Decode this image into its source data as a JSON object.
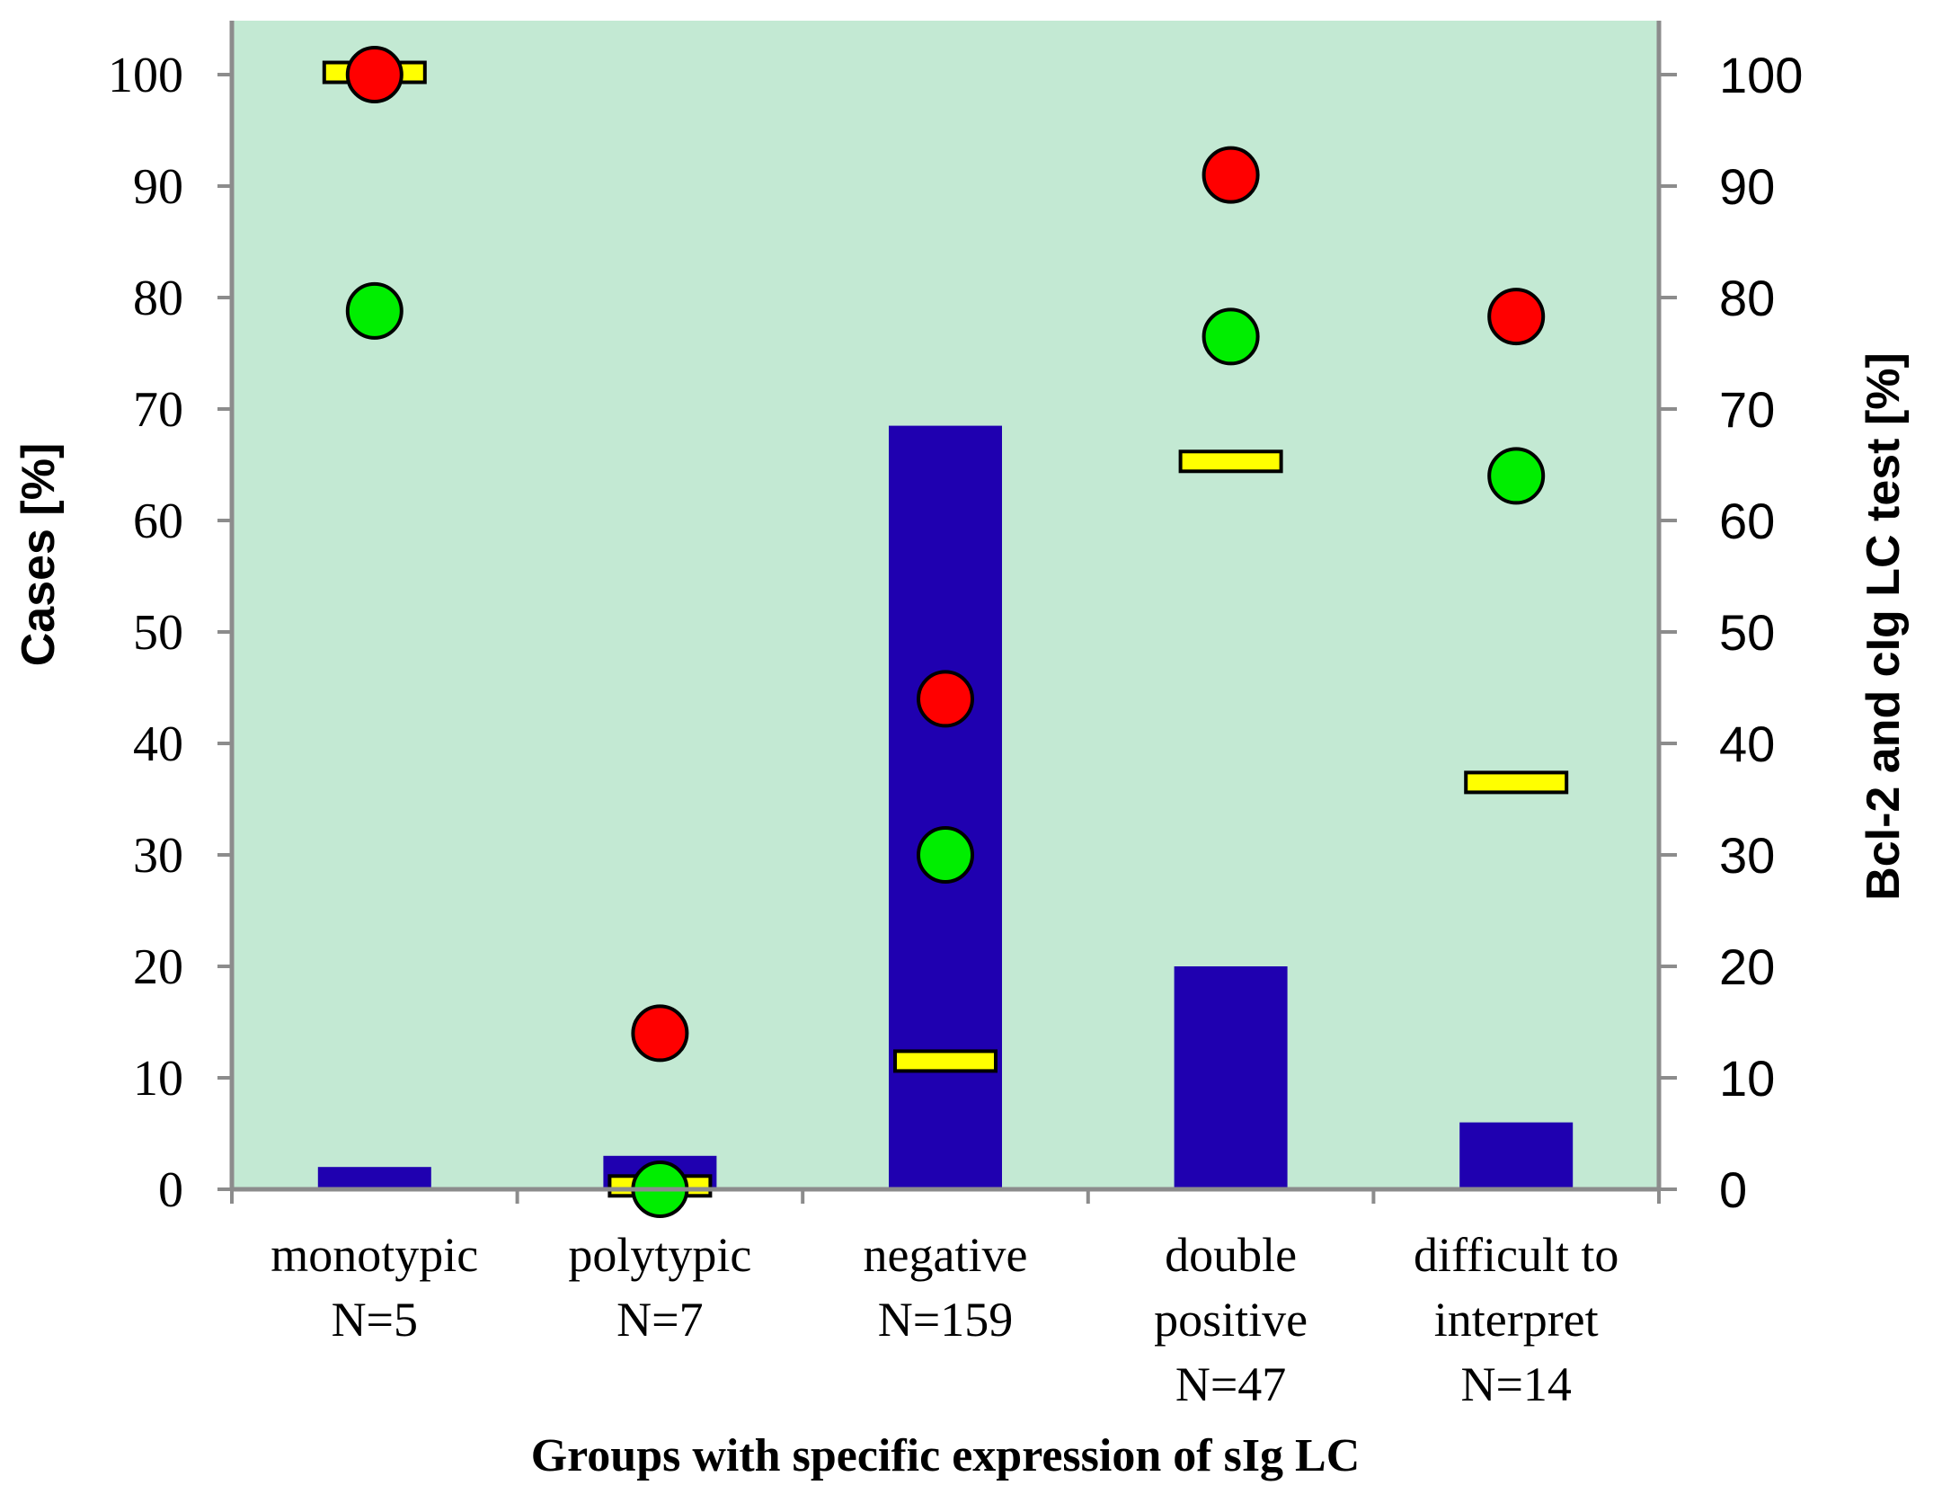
{
  "chart_data": {
    "type": "bar",
    "xlabel": "Groups with specific expression of sIg LC",
    "ylabel_left": "Cases [%]",
    "ylabel_right": "Bcl-2 and cIg LC test [%]",
    "ylim_left": [
      0,
      100
    ],
    "ylim_right": [
      0,
      100
    ],
    "left_ticks": [
      "0",
      "10",
      "20",
      "30",
      "40",
      "50",
      "60",
      "70",
      "80",
      "90",
      "100"
    ],
    "right_ticks": [
      "0",
      "10",
      "20",
      "30",
      "40",
      "50",
      "60",
      "70",
      "80",
      "90",
      "100"
    ],
    "categories": [
      {
        "lines": [
          "monotypic",
          "N=5"
        ]
      },
      {
        "lines": [
          "polytypic",
          "N=7"
        ]
      },
      {
        "lines": [
          "negative",
          "N=159"
        ]
      },
      {
        "lines": [
          "double",
          "positive",
          "N=47"
        ]
      },
      {
        "lines": [
          "difficult to",
          "interpret",
          "N=14"
        ]
      }
    ],
    "series": [
      {
        "name": "Cases",
        "kind": "bar",
        "axis": "left",
        "color": "#1f00b0",
        "values": [
          2,
          3,
          68.5,
          20,
          6
        ]
      },
      {
        "name": "Red marker",
        "kind": "circle",
        "axis": "right",
        "color": "#ff0000",
        "values": [
          100,
          14,
          44,
          91,
          78.3
        ]
      },
      {
        "name": "Green marker",
        "kind": "circle",
        "axis": "right",
        "color": "#00ee00",
        "values": [
          78.8,
          0,
          30,
          76.5,
          64
        ]
      },
      {
        "name": "Yellow marker",
        "kind": "dash",
        "axis": "right",
        "color": "#ffff00",
        "values": [
          100.2,
          0.3,
          11.5,
          65.3,
          36.5
        ]
      }
    ],
    "plot_background": "#c3e9d3",
    "grid": false
  }
}
